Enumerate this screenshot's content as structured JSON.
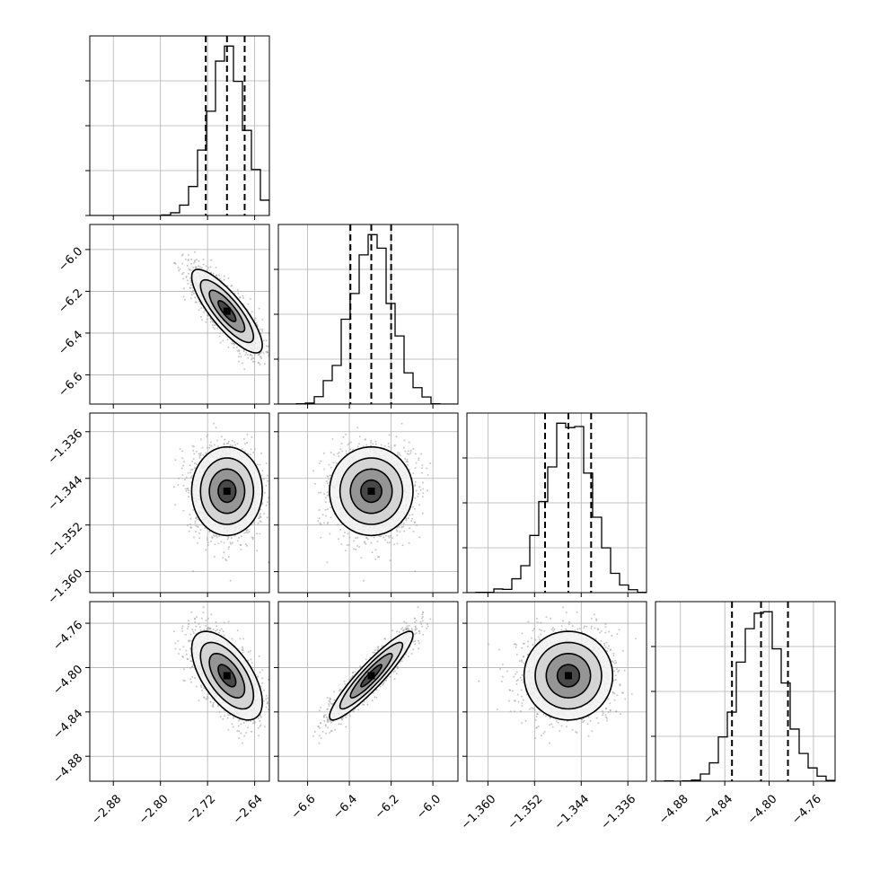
{
  "chart_data": {
    "type": "corner",
    "parameters": [
      {
        "name": "",
        "range": [
          -2.92,
          -2.615
        ],
        "ticks": [
          -2.88,
          -2.8,
          -2.72,
          -2.64
        ],
        "tick_labels": [
          "−2.88",
          "−2.80",
          "−2.72",
          "−2.64"
        ],
        "center": -2.687,
        "sd": 0.03,
        "quantiles": [
          -2.723,
          -2.687,
          -2.657
        ]
      },
      {
        "name": "",
        "range": [
          -6.74,
          -5.88
        ],
        "ticks": [
          -6.6,
          -6.4,
          -6.2,
          -6.0
        ],
        "tick_labels": [
          "−6.6",
          "−6.4",
          "−6.2",
          "−6.0"
        ],
        "center": -6.295,
        "sd": 0.1,
        "quantiles": [
          -6.395,
          -6.295,
          -6.2
        ]
      },
      {
        "name": "",
        "range": [
          -1.3636,
          -1.3328
        ],
        "ticks": [
          -1.36,
          -1.352,
          -1.344,
          -1.336
        ],
        "tick_labels": [
          "−1.360",
          "−1.352",
          "−1.344",
          "−1.336"
        ],
        "center": -1.3462,
        "sd": 0.0038,
        "quantiles": [
          -1.3502,
          -1.3462,
          -1.3423
        ]
      },
      {
        "name": "",
        "range": [
          -4.9025,
          -4.7405
        ],
        "ticks": [
          -4.88,
          -4.84,
          -4.8,
          -4.76
        ],
        "tick_labels": [
          "−4.88",
          "−4.84",
          "−4.80",
          "−4.76"
        ],
        "center": -4.8073,
        "sd": 0.02,
        "quantiles": [
          -4.8335,
          -4.8073,
          -4.783
        ]
      }
    ],
    "histogram_bins": 20,
    "quantile_levels": [
      0.16,
      0.5,
      0.84
    ],
    "correlations": [
      [
        1.0,
        -0.82,
        0.0,
        -0.6
      ],
      [
        -0.82,
        1.0,
        0.0,
        0.92
      ],
      [
        0.0,
        0.0,
        1.0,
        0.0
      ],
      [
        -0.6,
        0.92,
        0.0,
        1.0
      ]
    ],
    "contour_sigma_levels": [
      0.5,
      1.0,
      1.5,
      2.0
    ],
    "grid": true,
    "colors": {
      "line": "#000000",
      "points": "#9a9a9a",
      "grid": "#b0b0b0"
    }
  }
}
